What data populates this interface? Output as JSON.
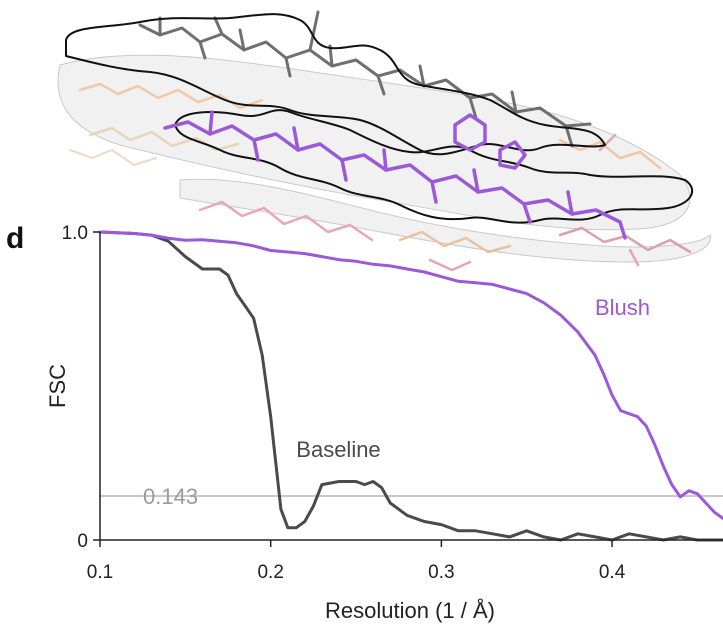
{
  "panel_letter": "d",
  "chart_data": {
    "type": "line",
    "xlabel": "Resolution (1 / Å)",
    "ylabel": "FSC",
    "xlim": [
      0.1,
      0.465
    ],
    "ylim": [
      0,
      1.0
    ],
    "x_ticks": [
      {
        "value": 0.1,
        "label": "0.1"
      },
      {
        "value": 0.2,
        "label": "0.2"
      },
      {
        "value": 0.3,
        "label": "0.3"
      },
      {
        "value": 0.4,
        "label": "0.4"
      }
    ],
    "y_ticks": [
      {
        "value": 0,
        "label": "0"
      },
      {
        "value": 1.0,
        "label": "1.0"
      }
    ],
    "threshold": {
      "value": 0.143,
      "label": "0.143",
      "color": "#c8c8c8"
    },
    "series": [
      {
        "name": "Blush",
        "color": "#9b59d9",
        "label_at": [
          0.39,
          0.73
        ],
        "points": [
          [
            0.1,
            1.0
          ],
          [
            0.12,
            0.995
          ],
          [
            0.13,
            0.99
          ],
          [
            0.14,
            0.98
          ],
          [
            0.15,
            0.973
          ],
          [
            0.16,
            0.975
          ],
          [
            0.17,
            0.97
          ],
          [
            0.18,
            0.965
          ],
          [
            0.19,
            0.955
          ],
          [
            0.2,
            0.94
          ],
          [
            0.21,
            0.935
          ],
          [
            0.22,
            0.93
          ],
          [
            0.23,
            0.92
          ],
          [
            0.24,
            0.91
          ],
          [
            0.25,
            0.905
          ],
          [
            0.26,
            0.895
          ],
          [
            0.27,
            0.89
          ],
          [
            0.28,
            0.88
          ],
          [
            0.29,
            0.87
          ],
          [
            0.3,
            0.855
          ],
          [
            0.31,
            0.84
          ],
          [
            0.32,
            0.835
          ],
          [
            0.33,
            0.83
          ],
          [
            0.34,
            0.815
          ],
          [
            0.35,
            0.8
          ],
          [
            0.36,
            0.77
          ],
          [
            0.37,
            0.73
          ],
          [
            0.38,
            0.675
          ],
          [
            0.39,
            0.6
          ],
          [
            0.395,
            0.54
          ],
          [
            0.4,
            0.47
          ],
          [
            0.405,
            0.42
          ],
          [
            0.41,
            0.41
          ],
          [
            0.415,
            0.4
          ],
          [
            0.42,
            0.37
          ],
          [
            0.425,
            0.31
          ],
          [
            0.43,
            0.24
          ],
          [
            0.435,
            0.18
          ],
          [
            0.44,
            0.14
          ],
          [
            0.445,
            0.16
          ],
          [
            0.45,
            0.15
          ],
          [
            0.455,
            0.12
          ],
          [
            0.46,
            0.09
          ],
          [
            0.465,
            0.07
          ]
        ]
      },
      {
        "name": "Baseline",
        "color": "#4a4a4a",
        "label_at": [
          0.215,
          0.27
        ],
        "points": [
          [
            0.1,
            1.0
          ],
          [
            0.12,
            0.995
          ],
          [
            0.13,
            0.99
          ],
          [
            0.14,
            0.97
          ],
          [
            0.15,
            0.92
          ],
          [
            0.16,
            0.88
          ],
          [
            0.17,
            0.88
          ],
          [
            0.175,
            0.86
          ],
          [
            0.18,
            0.8
          ],
          [
            0.185,
            0.76
          ],
          [
            0.19,
            0.72
          ],
          [
            0.195,
            0.6
          ],
          [
            0.2,
            0.4
          ],
          [
            0.203,
            0.25
          ],
          [
            0.206,
            0.1
          ],
          [
            0.21,
            0.04
          ],
          [
            0.215,
            0.04
          ],
          [
            0.22,
            0.06
          ],
          [
            0.225,
            0.11
          ],
          [
            0.23,
            0.18
          ],
          [
            0.24,
            0.19
          ],
          [
            0.25,
            0.19
          ],
          [
            0.255,
            0.18
          ],
          [
            0.26,
            0.19
          ],
          [
            0.265,
            0.17
          ],
          [
            0.27,
            0.12
          ],
          [
            0.28,
            0.08
          ],
          [
            0.29,
            0.06
          ],
          [
            0.3,
            0.05
          ],
          [
            0.31,
            0.03
          ],
          [
            0.32,
            0.03
          ],
          [
            0.33,
            0.02
          ],
          [
            0.34,
            0.01
          ],
          [
            0.35,
            0.03
          ],
          [
            0.36,
            0.01
          ],
          [
            0.37,
            0.0
          ],
          [
            0.38,
            0.02
          ],
          [
            0.39,
            0.01
          ],
          [
            0.4,
            0.0
          ],
          [
            0.41,
            0.02
          ],
          [
            0.42,
            0.01
          ],
          [
            0.43,
            0.0
          ],
          [
            0.44,
            0.01
          ],
          [
            0.45,
            0.0
          ],
          [
            0.465,
            0.0
          ]
        ]
      }
    ]
  }
}
